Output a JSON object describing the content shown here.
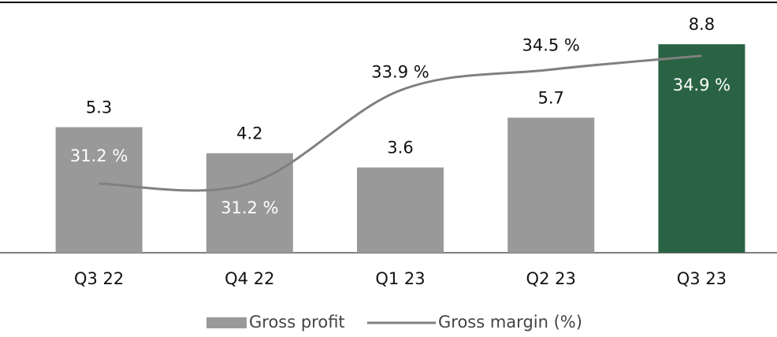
{
  "chart_data": {
    "type": "bar_line",
    "categories": [
      "Q3 22",
      "Q4 22",
      "Q1 23",
      "Q2 23",
      "Q3 23"
    ],
    "series": [
      {
        "name": "Gross profit",
        "type": "bar",
        "color": "#999999",
        "colors": [
          "#999999",
          "#999999",
          "#999999",
          "#999999",
          "#2a6343"
        ],
        "values": [
          5.3,
          4.2,
          3.6,
          5.7,
          8.8
        ]
      },
      {
        "name": "Gross margin (%)",
        "type": "line",
        "axis": "y2",
        "color": "#808080",
        "values": [
          31.2,
          31.2,
          33.9,
          34.5,
          34.9
        ],
        "value_labels": [
          "31.2 %",
          "31.2 %",
          "33.9 %",
          "34.5 %",
          "34.9 %"
        ]
      }
    ],
    "ylim": [
      0,
      10.5
    ],
    "y2lim": [
      29.2,
      36.4
    ]
  }
}
